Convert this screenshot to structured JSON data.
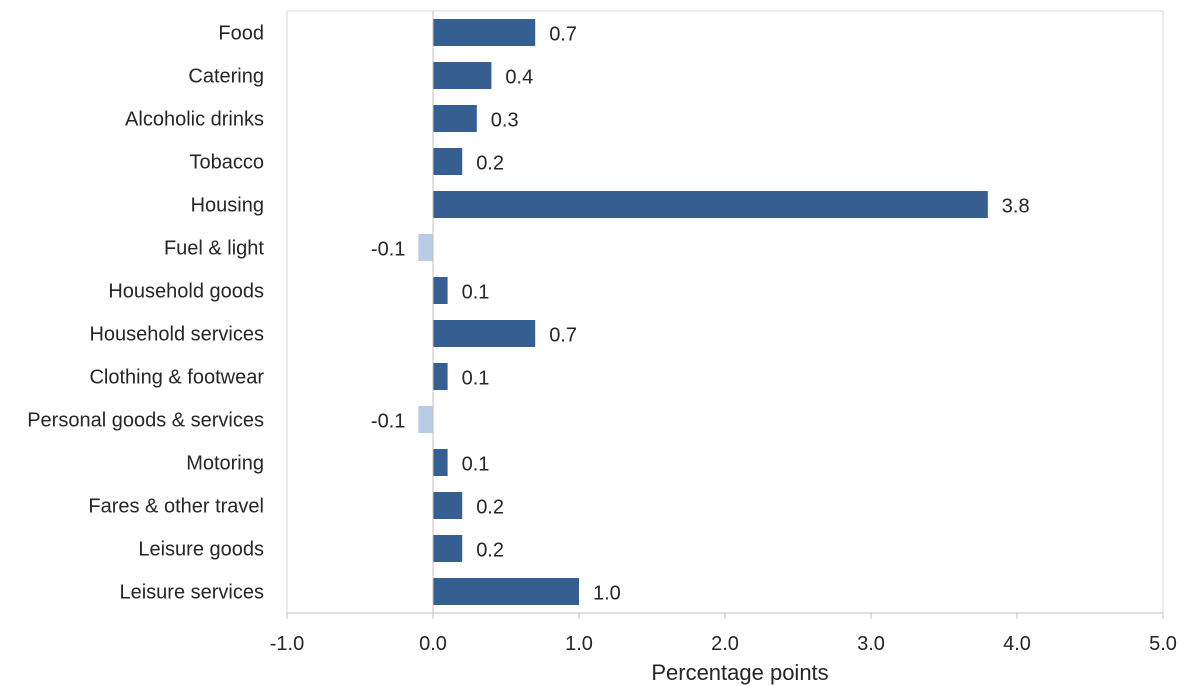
{
  "chart_data": {
    "type": "bar",
    "orientation": "horizontal",
    "categories": [
      "Food",
      "Catering",
      "Alcoholic drinks",
      "Tobacco",
      "Housing",
      "Fuel & light",
      "Household goods",
      "Household services",
      "Clothing & footwear",
      "Personal goods & services",
      "Motoring",
      "Fares & other travel",
      "Leisure goods",
      "Leisure services"
    ],
    "values": [
      0.7,
      0.4,
      0.3,
      0.2,
      3.8,
      -0.1,
      0.1,
      0.7,
      0.1,
      -0.1,
      0.1,
      0.2,
      0.2,
      1.0
    ],
    "value_labels": [
      "0.7",
      "0.4",
      "0.3",
      "0.2",
      "3.8",
      "-0.1",
      "0.1",
      "0.7",
      "0.1",
      "-0.1",
      "0.1",
      "0.2",
      "0.2",
      "1.0"
    ],
    "title": "",
    "xlabel": "Percentage points",
    "ylabel": "",
    "xlim": [
      -1.0,
      5.0
    ],
    "x_ticks": [
      -1.0,
      0.0,
      1.0,
      2.0,
      3.0,
      4.0,
      5.0
    ],
    "x_tick_labels": [
      "-1.0",
      "0.0",
      "1.0",
      "2.0",
      "3.0",
      "4.0",
      "5.0"
    ],
    "grid": false,
    "legend": "none",
    "colors": {
      "positive": "#355f91",
      "negative": "#b8cce4",
      "axis": "#bfbfbf",
      "frame": "#d9d9d9",
      "text": "#262626"
    }
  }
}
